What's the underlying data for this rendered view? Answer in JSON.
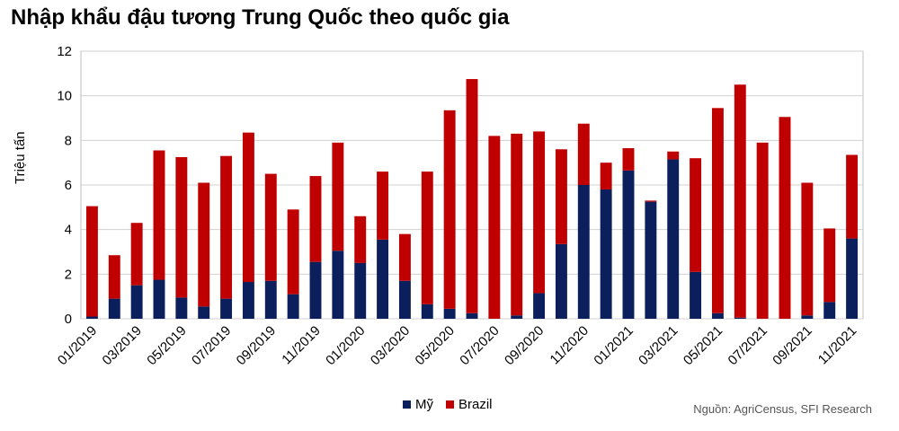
{
  "chart_data": {
    "type": "bar",
    "stacked": true,
    "title": "Nhập khẩu đậu tương Trung Quốc theo quốc gia",
    "ylabel": "Triệu tấn",
    "xlabel": "",
    "ylim": [
      0,
      12
    ],
    "yticks": [
      0,
      2,
      4,
      6,
      8,
      10,
      12
    ],
    "grid": true,
    "legend_position": "bottom",
    "categories": [
      "01/2019",
      "02/2019",
      "03/2019",
      "04/2019",
      "05/2019",
      "06/2019",
      "07/2019",
      "08/2019",
      "09/2019",
      "10/2019",
      "11/2019",
      "12/2019",
      "01/2020",
      "02/2020",
      "03/2020",
      "04/2020",
      "05/2020",
      "06/2020",
      "07/2020",
      "08/2020",
      "09/2020",
      "10/2020",
      "11/2020",
      "12/2020",
      "01/2021",
      "02/2021",
      "03/2021",
      "04/2021",
      "05/2021",
      "06/2021",
      "07/2021",
      "08/2021",
      "09/2021",
      "10/2021",
      "11/2021"
    ],
    "xtick_labels": [
      "01/2019",
      "03/2019",
      "05/2019",
      "07/2019",
      "09/2019",
      "11/2019",
      "01/2020",
      "03/2020",
      "05/2020",
      "07/2020",
      "09/2020",
      "11/2020",
      "01/2021",
      "03/2021",
      "05/2021",
      "07/2021",
      "09/2021",
      "11/2021"
    ],
    "series": [
      {
        "name": "Mỹ",
        "color": "#0a1f5c",
        "values": [
          0.1,
          0.9,
          1.5,
          1.75,
          0.95,
          0.55,
          0.9,
          1.65,
          1.7,
          1.1,
          2.55,
          3.05,
          2.5,
          3.55,
          1.7,
          0.65,
          0.45,
          0.25,
          0.0,
          0.15,
          1.15,
          3.35,
          6.0,
          5.8,
          6.65,
          5.25,
          7.15,
          2.1,
          0.25,
          0.05,
          0.0,
          0.0,
          0.15,
          0.75,
          3.6
        ]
      },
      {
        "name": "Brazil",
        "color": "#c00000",
        "values": [
          4.95,
          1.95,
          2.8,
          5.8,
          6.3,
          5.55,
          6.4,
          6.7,
          4.8,
          3.8,
          3.85,
          4.85,
          2.1,
          3.05,
          2.1,
          5.95,
          8.9,
          10.5,
          8.2,
          8.15,
          7.25,
          4.25,
          2.75,
          1.2,
          1.0,
          0.05,
          0.35,
          5.1,
          9.2,
          10.45,
          7.9,
          9.05,
          5.95,
          3.3,
          3.75
        ]
      }
    ],
    "source": "Nguồn: AgriCensus, SFI Research"
  }
}
